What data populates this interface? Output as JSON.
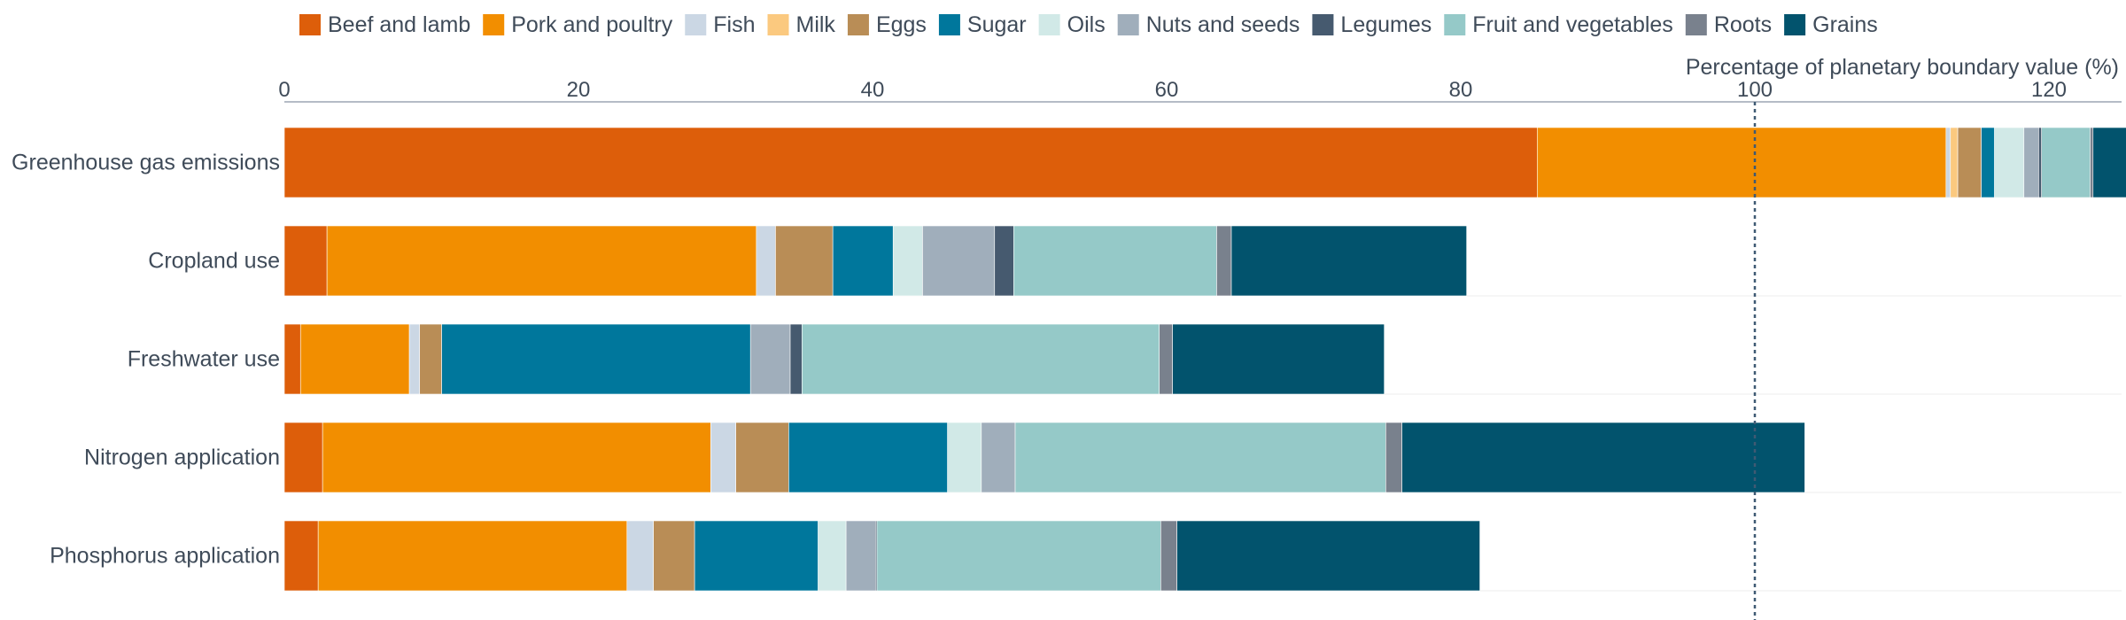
{
  "chart_data": {
    "type": "bar",
    "orientation": "horizontal",
    "stacked": true,
    "xlabel": "Percentage of planetary boundary value (%)",
    "ylabel": "",
    "xlim": [
      0,
      125
    ],
    "x_ticks": [
      0,
      20,
      40,
      60,
      80,
      100,
      120
    ],
    "reference_line": 100,
    "grid": true,
    "legend_position": "top",
    "categories": [
      "Greenhouse gas emissions",
      "Cropland use",
      "Freshwater use",
      "Nitrogen application",
      "Phosphorus application"
    ],
    "series": [
      {
        "name": "Beef and lamb",
        "color": "#dd5e0a",
        "values": [
          85.2,
          2.9,
          1.1,
          2.6,
          2.3
        ]
      },
      {
        "name": "Pork and poultry",
        "color": "#f28e00",
        "values": [
          27.8,
          29.2,
          7.4,
          26.4,
          21.0
        ]
      },
      {
        "name": "Fish",
        "color": "#cbd7e4",
        "values": [
          0.3,
          1.3,
          0.7,
          1.7,
          1.8
        ]
      },
      {
        "name": "Milk",
        "color": "#fbc97f",
        "values": [
          0.5,
          0.0,
          0.0,
          0.0,
          0.0
        ]
      },
      {
        "name": "Eggs",
        "color": "#b98d56",
        "values": [
          1.6,
          3.9,
          1.5,
          3.6,
          2.8
        ]
      },
      {
        "name": "Sugar",
        "color": "#00779c",
        "values": [
          0.9,
          4.1,
          21.0,
          10.8,
          8.4
        ]
      },
      {
        "name": "Oils",
        "color": "#d1e9e7",
        "values": [
          2.0,
          2.0,
          0.0,
          2.3,
          1.9
        ]
      },
      {
        "name": "Nuts and seeds",
        "color": "#a0aebb",
        "values": [
          1.0,
          4.9,
          2.7,
          2.3,
          2.0
        ]
      },
      {
        "name": "Legumes",
        "color": "#465a6f",
        "values": [
          0.2,
          1.3,
          0.8,
          0.0,
          0.1
        ]
      },
      {
        "name": "Fruit and vegetables",
        "color": "#95c9c8",
        "values": [
          3.3,
          13.8,
          24.3,
          25.2,
          19.3
        ]
      },
      {
        "name": "Roots",
        "color": "#79818d",
        "values": [
          0.2,
          1.0,
          0.9,
          1.1,
          1.1
        ]
      },
      {
        "name": "Grains",
        "color": "#02536d",
        "values": [
          2.3,
          16.0,
          14.4,
          27.4,
          20.6
        ]
      }
    ]
  }
}
